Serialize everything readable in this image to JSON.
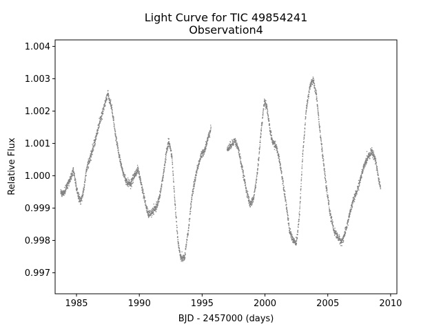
{
  "chart_data": {
    "type": "scatter",
    "title": "Light Curve for TIC 49854241",
    "subtitle": "Observation4",
    "xlabel": "BJD - 2457000 (days)",
    "ylabel": "Relative Flux",
    "xlim": [
      1983.3,
      2010.5
    ],
    "ylim": [
      0.99635,
      1.0042
    ],
    "xticks": [
      1985,
      1990,
      1995,
      2000,
      2005,
      2010
    ],
    "yticks": [
      0.997,
      0.998,
      0.999,
      1.0,
      1.001,
      1.002,
      1.003,
      1.004
    ],
    "xtick_labels": [
      "1985",
      "1990",
      "1995",
      "2000",
      "2005",
      "2010"
    ],
    "ytick_labels": [
      "0.997",
      "0.998",
      "0.999",
      "1.000",
      "1.001",
      "1.002",
      "1.003",
      "1.004"
    ],
    "marker_color": "#808080",
    "grid": false,
    "series": [
      {
        "segments": [
          [
            [
              1983.75,
              0.9995
            ],
            [
              1984.0,
              0.99945
            ],
            [
              1984.3,
              0.99975
            ],
            [
              1984.5,
              0.9999
            ],
            [
              1984.75,
              1.0002
            ],
            [
              1985.0,
              0.9996
            ],
            [
              1985.3,
              0.9992
            ],
            [
              1985.55,
              0.9995
            ],
            [
              1985.8,
              1.0002
            ],
            [
              1986.2,
              1.0007
            ],
            [
              1986.5,
              1.0011
            ],
            [
              1986.8,
              1.0016
            ],
            [
              1987.1,
              1.002
            ],
            [
              1987.5,
              1.00255
            ],
            [
              1987.8,
              1.0021
            ],
            [
              1988.1,
              1.0013
            ],
            [
              1988.4,
              1.0006
            ],
            [
              1988.7,
              1.0001
            ],
            [
              1989.0,
              0.9998
            ],
            [
              1989.3,
              0.99975
            ],
            [
              1989.6,
              1.0
            ],
            [
              1989.9,
              1.0002
            ],
            [
              1990.1,
              0.99985
            ],
            [
              1990.4,
              0.9993
            ],
            [
              1990.7,
              0.9988
            ],
            [
              1991.0,
              0.99885
            ],
            [
              1991.3,
              0.999
            ],
            [
              1991.6,
              0.9993
            ],
            [
              1991.9,
              1.0
            ],
            [
              1992.15,
              1.0007
            ],
            [
              1992.35,
              1.00105
            ],
            [
              1992.6,
              1.0006
            ],
            [
              1992.85,
              0.9991
            ],
            [
              1993.1,
              0.9979
            ],
            [
              1993.3,
              0.99745
            ],
            [
              1993.6,
              0.99745
            ],
            [
              1993.9,
              0.9983
            ],
            [
              1994.2,
              0.9994
            ],
            [
              1994.6,
              1.0002
            ],
            [
              1994.9,
              1.0006
            ],
            [
              1995.2,
              1.0008
            ],
            [
              1995.5,
              1.0012
            ],
            [
              1995.7,
              1.0015
            ]
          ],
          [
            [
              1997.0,
              1.0008
            ],
            [
              1997.3,
              1.00095
            ],
            [
              1997.6,
              1.0011
            ],
            [
              1997.9,
              1.0008
            ],
            [
              1998.2,
              1.0002
            ],
            [
              1998.5,
              0.9996
            ],
            [
              1998.8,
              0.9991
            ],
            [
              1999.1,
              0.9993
            ],
            [
              1999.4,
              1.0001
            ],
            [
              1999.7,
              1.0014
            ],
            [
              1999.95,
              1.0023
            ],
            [
              2000.15,
              1.00215
            ],
            [
              2000.4,
              1.0014
            ],
            [
              2000.6,
              1.00105
            ],
            [
              2000.9,
              1.0009
            ],
            [
              2001.15,
              1.0005
            ],
            [
              2001.4,
              0.9999
            ],
            [
              2001.7,
              0.9991
            ],
            [
              2001.95,
              0.9983
            ],
            [
              2002.25,
              0.998
            ],
            [
              2002.5,
              0.9979
            ],
            [
              2002.75,
              0.9988
            ],
            [
              2003.0,
              1.0006
            ],
            [
              2003.3,
              1.0021
            ],
            [
              2003.6,
              1.0028
            ],
            [
              2003.85,
              1.00295
            ],
            [
              2004.1,
              1.0025
            ],
            [
              2004.35,
              1.0015
            ],
            [
              2004.6,
              1.0006
            ],
            [
              2004.9,
              0.9996
            ],
            [
              2005.2,
              0.9988
            ],
            [
              2005.5,
              0.9983
            ],
            [
              2005.8,
              0.9981
            ],
            [
              2006.1,
              0.99795
            ],
            [
              2006.4,
              0.99825
            ],
            [
              2006.7,
              0.99875
            ],
            [
              2007.0,
              0.9992
            ],
            [
              2007.3,
              0.9995
            ],
            [
              2007.6,
              0.9999
            ],
            [
              2007.9,
              1.0003
            ],
            [
              2008.2,
              1.0006
            ],
            [
              2008.5,
              1.00075
            ],
            [
              2008.8,
              1.0005
            ],
            [
              2009.05,
              0.9999
            ],
            [
              2009.2,
              0.9996
            ]
          ]
        ]
      }
    ]
  }
}
